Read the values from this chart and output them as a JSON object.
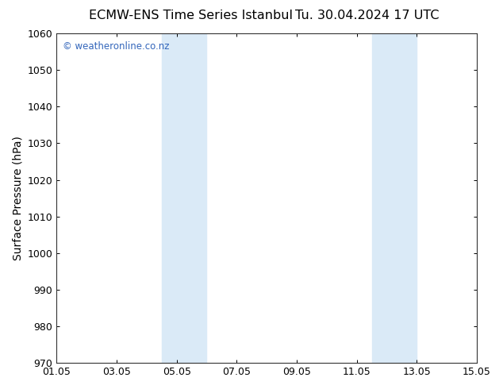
{
  "title_left": "ECMW-ENS Time Series Istanbul",
  "title_right": "Tu. 30.04.2024 17 UTC",
  "ylabel": "Surface Pressure (hPa)",
  "ylim": [
    970,
    1060
  ],
  "yticks": [
    970,
    980,
    990,
    1000,
    1010,
    1020,
    1030,
    1040,
    1050,
    1060
  ],
  "xlim_start": 0,
  "xlim_end": 14,
  "xtick_positions": [
    0,
    2,
    4,
    6,
    8,
    10,
    12,
    14
  ],
  "xtick_labels": [
    "01.05",
    "03.05",
    "05.05",
    "07.05",
    "09.05",
    "11.05",
    "13.05",
    "15.05"
  ],
  "shaded_bands": [
    {
      "xmin": 3.5,
      "xmax": 5.0
    },
    {
      "xmin": 10.5,
      "xmax": 12.0
    }
  ],
  "shade_color": "#daeaf7",
  "background_color": "#ffffff",
  "watermark_text": "© weatheronline.co.nz",
  "watermark_color": "#3366bb",
  "title_fontsize": 11.5,
  "axis_label_fontsize": 10,
  "tick_fontsize": 9,
  "spine_color": "#333333"
}
